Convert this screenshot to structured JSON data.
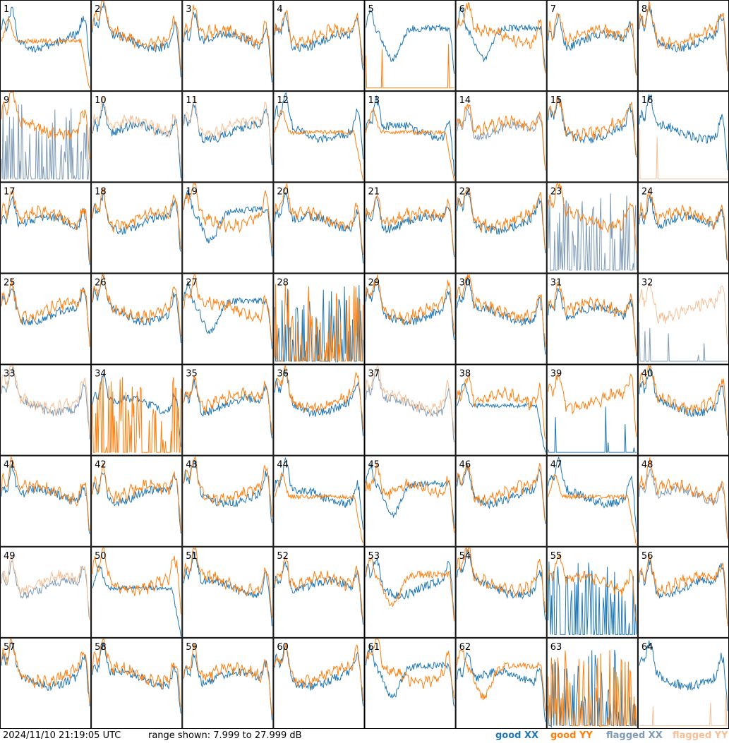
{
  "footer": {
    "timestamp": "2024/11/10 21:19:05 UTC",
    "range_shown": "range shown: 7.999 to 27.999 dB"
  },
  "legend": [
    {
      "key": "good_xx",
      "label": "good XX",
      "color": "#1f77b4"
    },
    {
      "key": "good_yy",
      "label": "good YY",
      "color": "#ff7f0e"
    },
    {
      "key": "flagged_xx",
      "label": "flagged XX",
      "color": "#7f9bb5"
    },
    {
      "key": "flagged_yy",
      "label": "flagged YY",
      "color": "#f5c096"
    }
  ],
  "chart_data": {
    "type": "line",
    "grid": {
      "rows": 8,
      "cols": 8
    },
    "ylim": [
      7.999,
      27.999
    ],
    "y_unit": "dB",
    "series_names": [
      "XX",
      "YY"
    ],
    "panels": [
      {
        "label": "1",
        "xx": "good",
        "yy": "good",
        "yy_shape": "arch"
      },
      {
        "label": "2",
        "xx": "good",
        "yy": "good"
      },
      {
        "label": "3",
        "xx": "good",
        "yy": "good"
      },
      {
        "label": "4",
        "xx": "good",
        "yy": "good"
      },
      {
        "label": "5",
        "xx": "good",
        "yy": "good",
        "xx_shape": "dip",
        "yy_shape": "dead"
      },
      {
        "label": "6",
        "xx": "good",
        "yy": "good",
        "xx_shape": "dip"
      },
      {
        "label": "7",
        "xx": "good",
        "yy": "good"
      },
      {
        "label": "8",
        "xx": "good",
        "yy": "good"
      },
      {
        "label": "9",
        "xx": "flagged",
        "yy": "good",
        "xx_shape": "spikes"
      },
      {
        "label": "10",
        "xx": "good",
        "yy": "flagged"
      },
      {
        "label": "11",
        "xx": "good",
        "yy": "flagged"
      },
      {
        "label": "12",
        "xx": "good",
        "yy": "good",
        "yy_shape": "arch"
      },
      {
        "label": "13",
        "xx": "good",
        "yy": "good",
        "yy_shape": "arch"
      },
      {
        "label": "14",
        "xx": "flagged",
        "yy": "good"
      },
      {
        "label": "15",
        "xx": "good",
        "yy": "good"
      },
      {
        "label": "16",
        "xx": "good",
        "yy": "flagged",
        "yy_shape": "dead"
      },
      {
        "label": "17",
        "xx": "good",
        "yy": "good"
      },
      {
        "label": "18",
        "xx": "good",
        "yy": "good"
      },
      {
        "label": "19",
        "xx": "good",
        "yy": "good",
        "xx_shape": "dip"
      },
      {
        "label": "20",
        "xx": "good",
        "yy": "good"
      },
      {
        "label": "21",
        "xx": "good",
        "yy": "good"
      },
      {
        "label": "22",
        "xx": "good",
        "yy": "good"
      },
      {
        "label": "23",
        "xx": "flagged",
        "yy": "good",
        "xx_shape": "spikes"
      },
      {
        "label": "24",
        "xx": "good",
        "yy": "good"
      },
      {
        "label": "25",
        "xx": "good",
        "yy": "good"
      },
      {
        "label": "26",
        "xx": "good",
        "yy": "good"
      },
      {
        "label": "27",
        "xx": "good",
        "yy": "good",
        "xx_shape": "dip"
      },
      {
        "label": "28",
        "xx": "good",
        "yy": "good",
        "xx_shape": "spikes",
        "yy_shape": "spikes"
      },
      {
        "label": "29",
        "xx": "good",
        "yy": "good"
      },
      {
        "label": "30",
        "xx": "good",
        "yy": "good"
      },
      {
        "label": "31",
        "xx": "good",
        "yy": "good"
      },
      {
        "label": "32",
        "xx": "flagged",
        "yy": "flagged",
        "xx_shape": "dead"
      },
      {
        "label": "33",
        "xx": "flagged",
        "yy": "flagged"
      },
      {
        "label": "34",
        "xx": "good",
        "yy": "good",
        "yy_shape": "spikes"
      },
      {
        "label": "35",
        "xx": "good",
        "yy": "good"
      },
      {
        "label": "36",
        "xx": "good",
        "yy": "good"
      },
      {
        "label": "37",
        "xx": "flagged",
        "yy": "flagged"
      },
      {
        "label": "38",
        "xx": "good",
        "yy": "good",
        "xx_shape": "arch"
      },
      {
        "label": "39",
        "xx": "good",
        "yy": "good",
        "xx_shape": "dead"
      },
      {
        "label": "40",
        "xx": "good",
        "yy": "good"
      },
      {
        "label": "41",
        "xx": "good",
        "yy": "good"
      },
      {
        "label": "42",
        "xx": "good",
        "yy": "good"
      },
      {
        "label": "43",
        "xx": "good",
        "yy": "good"
      },
      {
        "label": "44",
        "xx": "good",
        "yy": "good",
        "yy_shape": "arch"
      },
      {
        "label": "45",
        "xx": "good",
        "yy": "good",
        "xx_shape": "dip"
      },
      {
        "label": "46",
        "xx": "good",
        "yy": "good"
      },
      {
        "label": "47",
        "xx": "good",
        "yy": "good",
        "yy_shape": "arch"
      },
      {
        "label": "48",
        "xx": "flagged",
        "yy": "good"
      },
      {
        "label": "49",
        "xx": "flagged",
        "yy": "flagged"
      },
      {
        "label": "50",
        "xx": "good",
        "yy": "good",
        "xx_shape": "arch"
      },
      {
        "label": "51",
        "xx": "good",
        "yy": "good"
      },
      {
        "label": "52",
        "xx": "good",
        "yy": "good"
      },
      {
        "label": "53",
        "xx": "good",
        "yy": "good",
        "yy_shape": "dip"
      },
      {
        "label": "54",
        "xx": "good",
        "yy": "good"
      },
      {
        "label": "55",
        "xx": "good",
        "yy": "good",
        "xx_shape": "spikes"
      },
      {
        "label": "56",
        "xx": "good",
        "yy": "good"
      },
      {
        "label": "57",
        "xx": "good",
        "yy": "good"
      },
      {
        "label": "58",
        "xx": "good",
        "yy": "good"
      },
      {
        "label": "59",
        "xx": "good",
        "yy": "good"
      },
      {
        "label": "60",
        "xx": "good",
        "yy": "good"
      },
      {
        "label": "61",
        "xx": "good",
        "yy": "good",
        "xx_shape": "dip"
      },
      {
        "label": "62",
        "xx": "good",
        "yy": "good",
        "yy_shape": "dip"
      },
      {
        "label": "63",
        "xx": "good",
        "yy": "good",
        "xx_shape": "spikes",
        "yy_shape": "spikes"
      },
      {
        "label": "64",
        "xx": "good",
        "yy": "flagged",
        "yy_shape": "dead"
      }
    ]
  }
}
